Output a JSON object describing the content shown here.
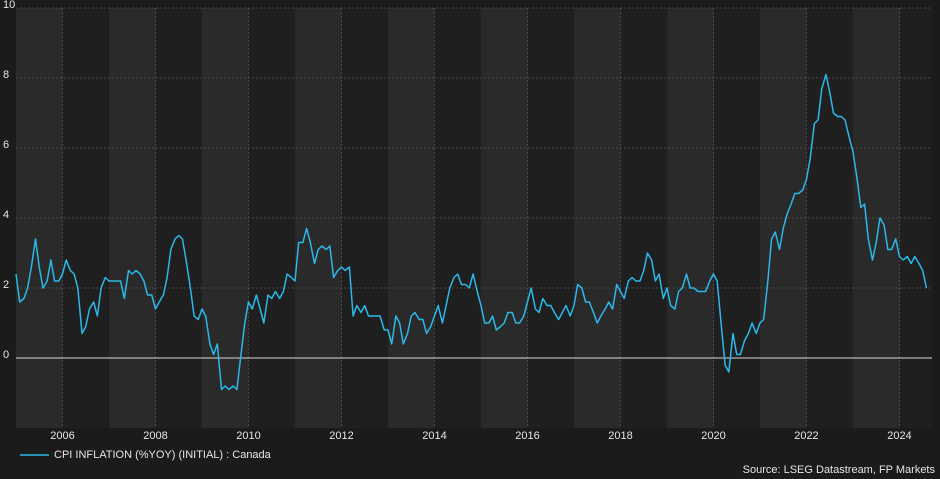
{
  "chart_data": {
    "type": "line",
    "source": "Source: LSEG Datastream, FP Markets",
    "x": [
      2005,
      2005.08,
      2005.17,
      2005.25,
      2005.33,
      2005.42,
      2005.5,
      2005.58,
      2005.67,
      2005.75,
      2005.83,
      2005.92,
      2006,
      2006.08,
      2006.17,
      2006.25,
      2006.33,
      2006.42,
      2006.5,
      2006.58,
      2006.67,
      2006.75,
      2006.83,
      2006.92,
      2007,
      2007.08,
      2007.17,
      2007.25,
      2007.33,
      2007.42,
      2007.5,
      2007.58,
      2007.67,
      2007.75,
      2007.83,
      2007.92,
      2008,
      2008.08,
      2008.17,
      2008.25,
      2008.33,
      2008.42,
      2008.5,
      2008.58,
      2008.67,
      2008.75,
      2008.83,
      2008.92,
      2009,
      2009.08,
      2009.17,
      2009.25,
      2009.33,
      2009.42,
      2009.5,
      2009.58,
      2009.67,
      2009.75,
      2009.83,
      2009.92,
      2010,
      2010.08,
      2010.17,
      2010.25,
      2010.33,
      2010.42,
      2010.5,
      2010.58,
      2010.67,
      2010.75,
      2010.83,
      2010.92,
      2011,
      2011.08,
      2011.17,
      2011.25,
      2011.33,
      2011.42,
      2011.5,
      2011.58,
      2011.67,
      2011.75,
      2011.83,
      2011.92,
      2012,
      2012.08,
      2012.17,
      2012.25,
      2012.33,
      2012.42,
      2012.5,
      2012.58,
      2012.67,
      2012.75,
      2012.83,
      2012.92,
      2013,
      2013.08,
      2013.17,
      2013.25,
      2013.33,
      2013.42,
      2013.5,
      2013.58,
      2013.67,
      2013.75,
      2013.83,
      2013.92,
      2014,
      2014.08,
      2014.17,
      2014.25,
      2014.33,
      2014.42,
      2014.5,
      2014.58,
      2014.67,
      2014.75,
      2014.83,
      2014.92,
      2015,
      2015.08,
      2015.17,
      2015.25,
      2015.33,
      2015.42,
      2015.5,
      2015.58,
      2015.67,
      2015.75,
      2015.83,
      2015.92,
      2016,
      2016.08,
      2016.17,
      2016.25,
      2016.33,
      2016.42,
      2016.5,
      2016.58,
      2016.67,
      2016.75,
      2016.83,
      2016.92,
      2017,
      2017.08,
      2017.17,
      2017.25,
      2017.33,
      2017.42,
      2017.5,
      2017.58,
      2017.67,
      2017.75,
      2017.83,
      2017.92,
      2018,
      2018.08,
      2018.17,
      2018.25,
      2018.33,
      2018.42,
      2018.5,
      2018.58,
      2018.67,
      2018.75,
      2018.83,
      2018.92,
      2019,
      2019.08,
      2019.17,
      2019.25,
      2019.33,
      2019.42,
      2019.5,
      2019.58,
      2019.67,
      2019.75,
      2019.83,
      2019.92,
      2020,
      2020.08,
      2020.17,
      2020.25,
      2020.33,
      2020.42,
      2020.5,
      2020.58,
      2020.67,
      2020.75,
      2020.83,
      2020.92,
      2021,
      2021.08,
      2021.17,
      2021.25,
      2021.33,
      2021.42,
      2021.5,
      2021.58,
      2021.67,
      2021.75,
      2021.83,
      2021.92,
      2022,
      2022.08,
      2022.17,
      2022.25,
      2022.33,
      2022.42,
      2022.5,
      2022.58,
      2022.67,
      2022.75,
      2022.83,
      2022.92,
      2023,
      2023.08,
      2023.17,
      2023.25,
      2023.33,
      2023.42,
      2023.5,
      2023.58,
      2023.67,
      2023.75,
      2023.83,
      2023.92,
      2024,
      2024.08,
      2024.17,
      2024.25,
      2024.33,
      2024.42,
      2024.5,
      2024.58
    ],
    "series": [
      {
        "name": "CPI INFLATION (%YOY) (INITIAL) : Canada",
        "color": "#2bb8ea",
        "values": [
          2.4,
          1.6,
          1.7,
          2.0,
          2.6,
          3.4,
          2.6,
          2.0,
          2.2,
          2.8,
          2.2,
          2.2,
          2.4,
          2.8,
          2.5,
          2.4,
          2.0,
          0.7,
          0.9,
          1.4,
          1.6,
          1.2,
          2.0,
          2.3,
          2.2,
          2.2,
          2.2,
          2.2,
          1.7,
          2.5,
          2.4,
          2.5,
          2.4,
          2.2,
          1.8,
          1.8,
          1.4,
          1.6,
          1.8,
          2.3,
          3.1,
          3.4,
          3.5,
          3.4,
          2.7,
          2.0,
          1.2,
          1.1,
          1.4,
          1.2,
          0.4,
          0.1,
          0.4,
          -0.9,
          -0.8,
          -0.9,
          -0.8,
          -0.9,
          0.0,
          1.0,
          1.6,
          1.4,
          1.8,
          1.4,
          1.0,
          1.8,
          1.7,
          1.9,
          1.7,
          1.9,
          2.4,
          2.3,
          2.2,
          3.3,
          3.3,
          3.7,
          3.3,
          2.7,
          3.1,
          3.2,
          3.1,
          3.2,
          2.3,
          2.5,
          2.6,
          2.5,
          2.6,
          1.2,
          1.5,
          1.3,
          1.5,
          1.2,
          1.2,
          1.2,
          1.2,
          0.8,
          0.8,
          0.4,
          1.2,
          1.0,
          0.4,
          0.7,
          1.2,
          1.3,
          1.1,
          1.1,
          0.7,
          0.9,
          1.2,
          1.5,
          1.0,
          1.5,
          2.0,
          2.3,
          2.4,
          2.1,
          2.1,
          2.0,
          2.4,
          1.9,
          1.5,
          1.0,
          1.0,
          1.2,
          0.8,
          0.9,
          1.0,
          1.3,
          1.3,
          1.0,
          1.0,
          1.2,
          1.6,
          2.0,
          1.4,
          1.3,
          1.7,
          1.5,
          1.5,
          1.3,
          1.1,
          1.3,
          1.5,
          1.2,
          1.5,
          2.1,
          2.0,
          1.6,
          1.6,
          1.3,
          1.0,
          1.2,
          1.4,
          1.6,
          1.4,
          2.1,
          1.9,
          1.7,
          2.2,
          2.3,
          2.2,
          2.2,
          2.5,
          3.0,
          2.8,
          2.2,
          2.4,
          1.7,
          2.0,
          1.5,
          1.4,
          1.9,
          2.0,
          2.4,
          2.0,
          2.0,
          1.9,
          1.9,
          1.9,
          2.2,
          2.4,
          2.2,
          0.9,
          -0.2,
          -0.4,
          0.7,
          0.1,
          0.1,
          0.5,
          0.7,
          1.0,
          0.7,
          1.0,
          1.1,
          2.2,
          3.4,
          3.6,
          3.1,
          3.7,
          4.1,
          4.4,
          4.7,
          4.7,
          4.8,
          5.1,
          5.7,
          6.7,
          6.8,
          7.7,
          8.1,
          7.6,
          7.0,
          6.9,
          6.9,
          6.8,
          6.3,
          5.9,
          5.2,
          4.3,
          4.4,
          3.4,
          2.8,
          3.3,
          4.0,
          3.8,
          3.1,
          3.1,
          3.4,
          2.9,
          2.8,
          2.9,
          2.7,
          2.9,
          2.7,
          2.5,
          2.0
        ]
      }
    ],
    "xlim": [
      2005,
      2024.7
    ],
    "xticks": [
      2006,
      2008,
      2010,
      2012,
      2014,
      2016,
      2018,
      2020,
      2022,
      2024
    ],
    "ylim": [
      -2,
      10
    ],
    "yticks": [
      0,
      2,
      4,
      6,
      8,
      10
    ],
    "grid": true
  }
}
